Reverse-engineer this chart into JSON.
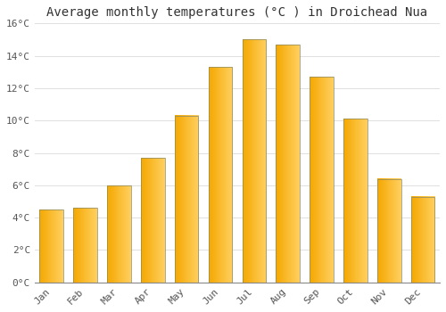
{
  "title": "Average monthly temperatures (°C ) in Droichead Nua",
  "months": [
    "Jan",
    "Feb",
    "Mar",
    "Apr",
    "May",
    "Jun",
    "Jul",
    "Aug",
    "Sep",
    "Oct",
    "Nov",
    "Dec"
  ],
  "values": [
    4.5,
    4.6,
    6.0,
    7.7,
    10.3,
    13.3,
    15.0,
    14.7,
    12.7,
    10.1,
    6.4,
    5.3
  ],
  "bar_color_left": "#F5A800",
  "bar_color_right": "#FFD060",
  "bar_edge_color": "#888866",
  "ylim": [
    0,
    16
  ],
  "yticks": [
    0,
    2,
    4,
    6,
    8,
    10,
    12,
    14,
    16
  ],
  "background_color": "#FFFFFF",
  "grid_color": "#E0E0E0",
  "title_fontsize": 10,
  "tick_fontsize": 8,
  "bar_width": 0.7
}
